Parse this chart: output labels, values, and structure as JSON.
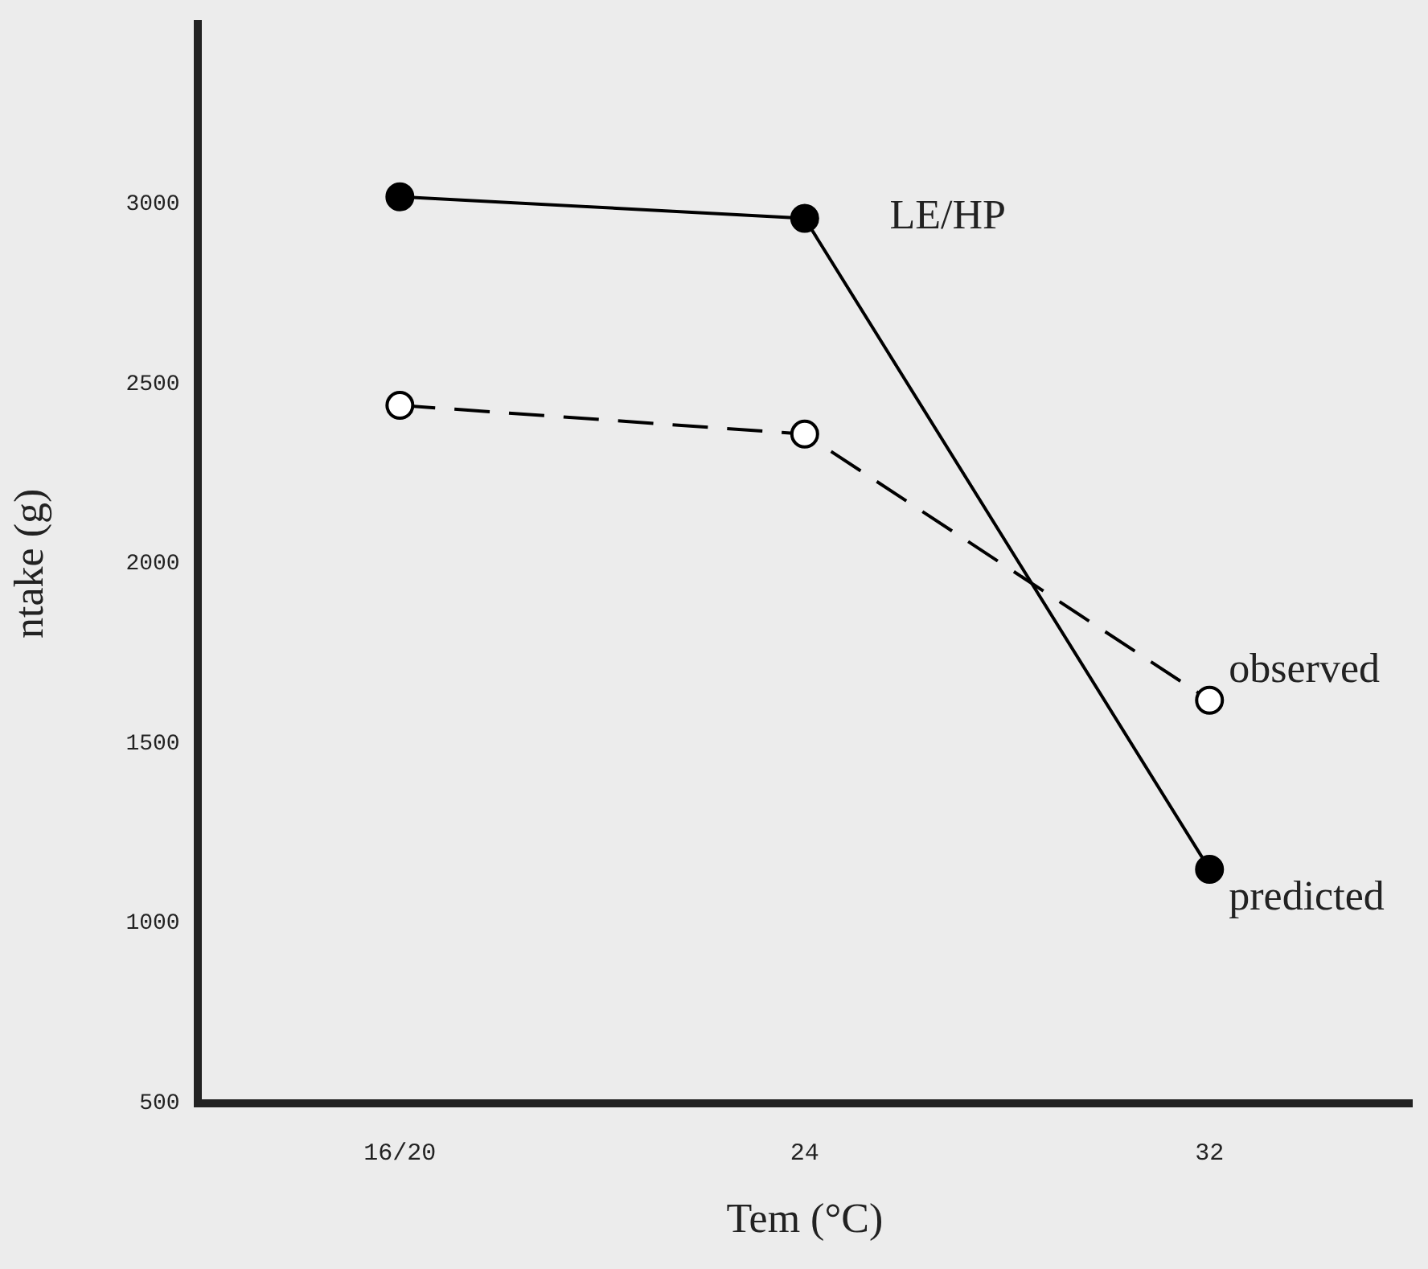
{
  "chart_data": {
    "type": "line",
    "xlabel": "Tem (°C)",
    "ylabel": "ntake (g)",
    "annotations": [
      "LE/HP"
    ],
    "categories": [
      "16/20",
      "24",
      "32"
    ],
    "ylim": [
      500,
      3500
    ],
    "yticks": [
      500,
      1000,
      1500,
      2000,
      2500,
      3000
    ],
    "grid": false,
    "legend": false,
    "marker": "circle",
    "series": [
      {
        "name": "predicted",
        "color": "#000000",
        "values": [
          3020,
          2960,
          1150
        ],
        "line_style": "solid"
      },
      {
        "name": "observed",
        "color": "#000000",
        "values": [
          2440,
          2360,
          1620
        ],
        "line_style": "dashed"
      }
    ]
  }
}
